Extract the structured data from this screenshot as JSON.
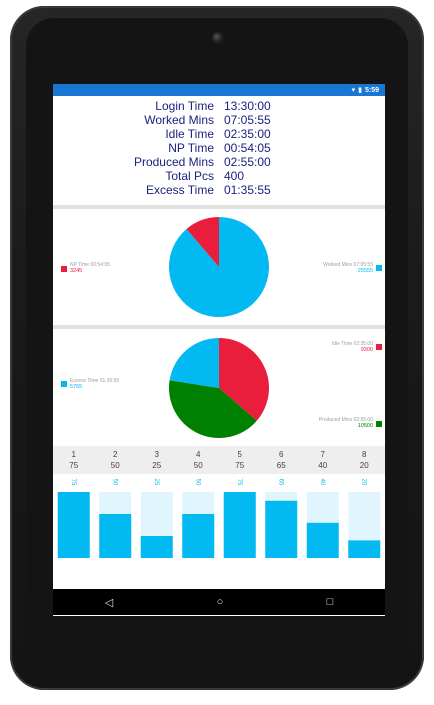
{
  "status_bar": {
    "time": "5:59",
    "icons": [
      "wifi-icon",
      "battery-icon"
    ]
  },
  "stats": [
    {
      "label": "Login Time",
      "value": "13:30:00"
    },
    {
      "label": "Worked Mins",
      "value": "07:05:55"
    },
    {
      "label": "Idle Time",
      "value": "02:35:00"
    },
    {
      "label": "NP Time",
      "value": "00:54:05"
    },
    {
      "label": "Produced Mins",
      "value": "02:55:00"
    },
    {
      "label": "Total Pcs",
      "value": "400"
    },
    {
      "label": "Excess Time",
      "value": "01:35:55"
    }
  ],
  "pie1": {
    "left_legend": {
      "label": "NP Time 00:54:05",
      "value": "3245",
      "color": "#e91e3c"
    },
    "right_legend": {
      "label": "Worked Mins 07:05:55",
      "value": "25555",
      "color": "#03b9f1"
    }
  },
  "pie2": {
    "left_legend": {
      "label": "Excess Time 01:35:55",
      "value": "5755",
      "color": "#03b9f1"
    },
    "right_top_legend": {
      "label": "Idle Time 02:35:00",
      "value": "9300",
      "color": "#e91e3c"
    },
    "right_bottom_legend": {
      "label": "Produced Mins 02:55:00",
      "value": "10500",
      "color": "#008000"
    }
  },
  "chart_data": [
    {
      "type": "pie",
      "labels": [
        "NP Time 00:54:05",
        "Worked Mins 07:05:55"
      ],
      "values": [
        3245,
        25555
      ],
      "colors": [
        "#e91e3c",
        "#03b9f1"
      ]
    },
    {
      "type": "pie",
      "labels": [
        "Idle Time 02:35:00",
        "Produced Mins 02:55:00",
        "Excess Time 01:35:55"
      ],
      "values": [
        9300,
        10500,
        5755
      ],
      "colors": [
        "#e91e3c",
        "#008000",
        "#03b9f1"
      ]
    },
    {
      "type": "bar",
      "categories": [
        "1",
        "2",
        "3",
        "4",
        "5",
        "6",
        "7",
        "8"
      ],
      "values": [
        75,
        50,
        25,
        50,
        75,
        65,
        40,
        20
      ],
      "ylim": [
        0,
        75
      ],
      "bar_color": "#03b9f1",
      "track_color": "#e1f5fe"
    }
  ],
  "grid_header": {
    "columns": [
      "1",
      "2",
      "3",
      "4",
      "5",
      "6",
      "7",
      "8"
    ],
    "values": [
      "75",
      "50",
      "25",
      "50",
      "75",
      "65",
      "40",
      "20"
    ]
  },
  "nav_bar": {
    "back": "◁",
    "home": "○",
    "recents": "□"
  }
}
